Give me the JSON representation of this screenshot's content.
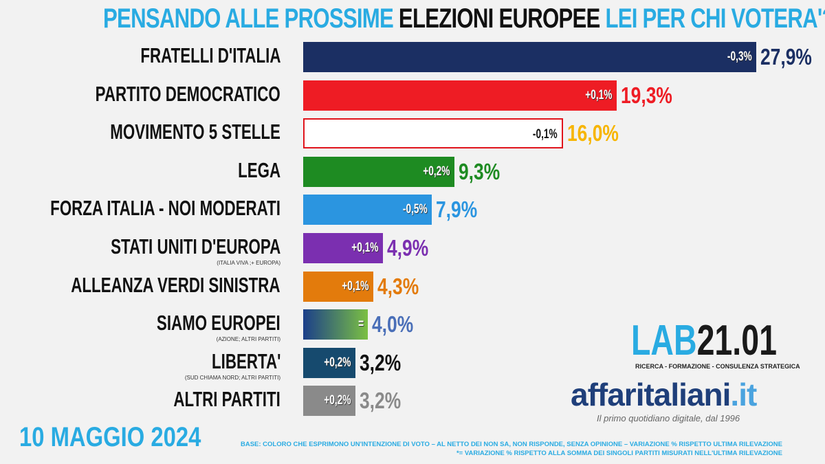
{
  "title": {
    "part1": "PENSANDO ALLE PROSSIME",
    "part2": "ELEZIONI EUROPEE",
    "part3": "LEI PER CHI VOTERA'?"
  },
  "date": "10 MAGGIO 2024",
  "footnotes": [
    "BASE: COLORO CHE ESPRIMONO UN'INTENZIONE DI VOTO – AL NETTO DEI NON SA, NON RISPONDE, SENZA OPINIONE – VARIAZIONE % RISPETTO ULTIMA RILEVAZIONE",
    "*= VARIAZIONE % RISPETTO ALLA SOMMA DEI SINGOLI PARTITI MISURATI NELL'ULTIMA RILEVAZIONE"
  ],
  "logos": {
    "lab_a": "LAB",
    "lab_b": "21.01",
    "lab_sub": "RICERCA - FORMAZIONE - CONSULENZA STRATEGICA",
    "affari_a": "affaritaliani",
    "affari_b": ".it",
    "tagline": "Il primo quotidiano digitale, dal 1996"
  },
  "chart_data": {
    "type": "bar",
    "orientation": "horizontal",
    "title": "PENSANDO ALLE PROSSIME ELEZIONI EUROPEE LEI PER CHI VOTERA'?",
    "unit": "%",
    "xlim": [
      0,
      28
    ],
    "categories": [
      "FRATELLI D'ITALIA",
      "PARTITO DEMOCRATICO",
      "MOVIMENTO 5 STELLE",
      "LEGA",
      "FORZA ITALIA - NOI MODERATI",
      "STATI UNITI D'EUROPA",
      "ALLEANZA VERDI SINISTRA",
      "SIAMO EUROPEI",
      "LIBERTA'",
      "ALTRI PARTITI"
    ],
    "subtitles": [
      "",
      "",
      "",
      "",
      "",
      "(ITALIA VIVA ;+ EUROPA)",
      "",
      "(AZIONE; ALTRI PARTITI)",
      "(SUD CHIAMA NORD; ALTRI PARTITI)",
      ""
    ],
    "values": [
      27.9,
      19.3,
      16.0,
      9.3,
      7.9,
      4.9,
      4.3,
      4.0,
      3.2,
      3.2
    ],
    "value_labels": [
      "27,9%",
      "19,3%",
      "16,0%",
      "9,3%",
      "7,9%",
      "4,9%",
      "4,3%",
      "4,0%",
      "3,2%",
      "3,2%"
    ],
    "changes": [
      "-0,3%",
      "+0,1%",
      "-0,1%",
      "+0,2%",
      "-0,5%",
      "+0,1%",
      "+0,1%",
      "=",
      "+0,2%",
      "+0,2%"
    ],
    "colors": [
      "#1b2f63",
      "#ee1c24",
      "#ffffff",
      "#1e8b22",
      "#2b95e0",
      "#7b2fb0",
      "#e37b0c",
      "gradient",
      "#164a6e",
      "#8a8a8a"
    ],
    "value_colors": [
      "#1b2f63",
      "#ee1c24",
      "#f7b500",
      "#1e8b22",
      "#2b95e0",
      "#7b2fb0",
      "#e37b0c",
      "#4a6fb8",
      "#111111",
      "#8a8a8a"
    ]
  }
}
